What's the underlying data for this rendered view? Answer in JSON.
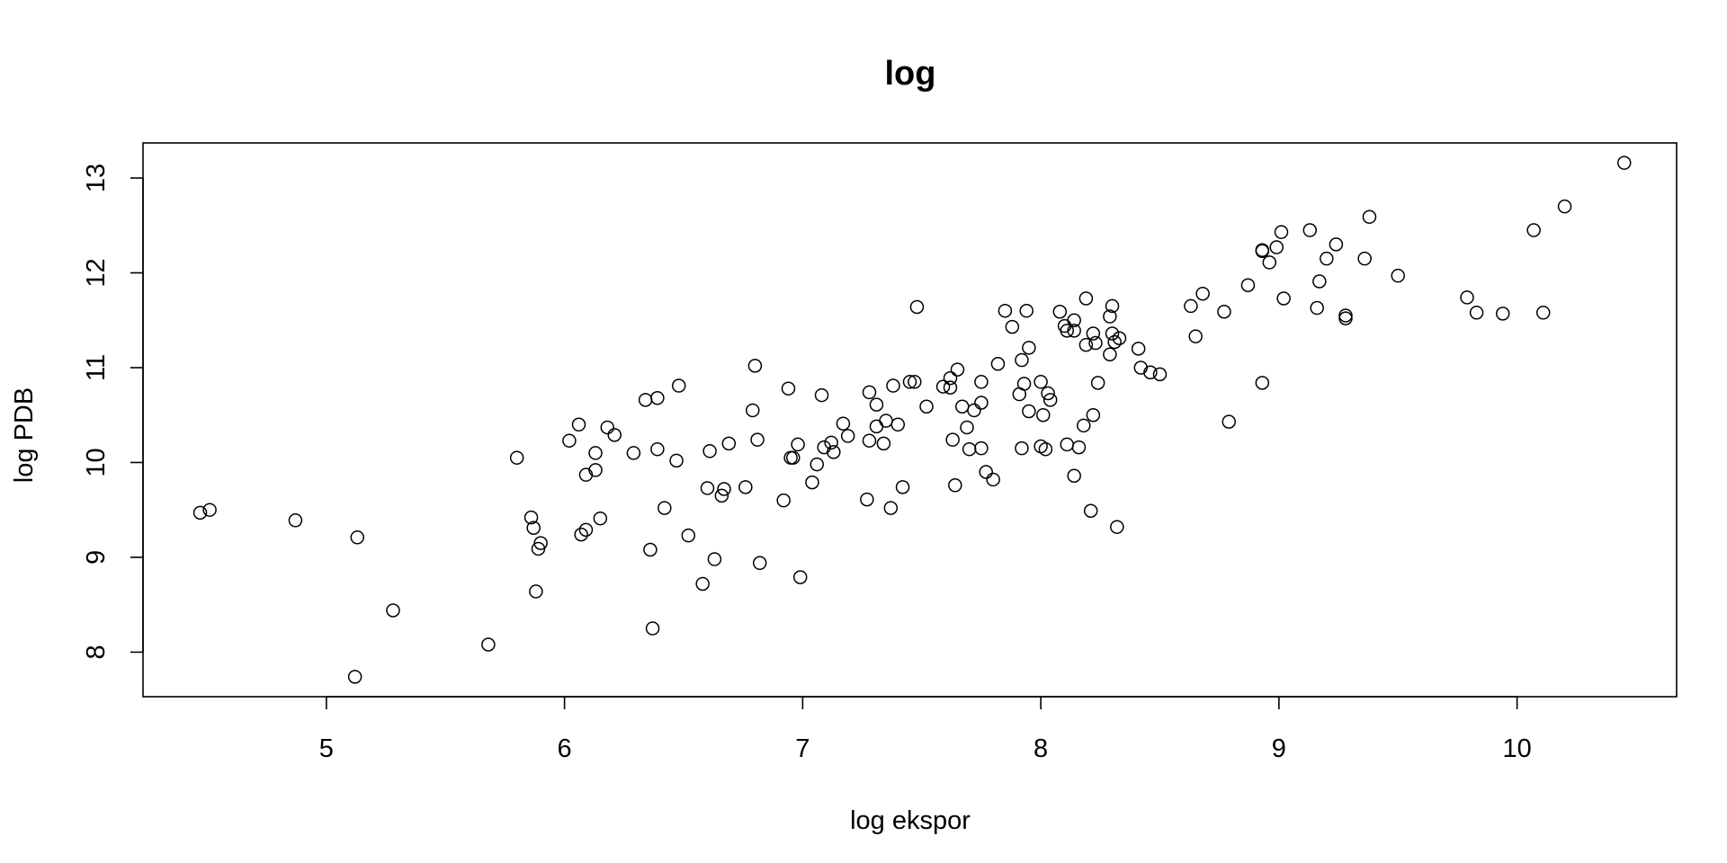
{
  "chart_data": {
    "type": "scatter",
    "title": "log",
    "xlabel": "log ekspor",
    "ylabel": "log PDB",
    "xlim": [
      4.23,
      10.67
    ],
    "ylim": [
      7.53,
      13.37
    ],
    "xticks": [
      5,
      6,
      7,
      8,
      9,
      10
    ],
    "yticks": [
      8,
      9,
      10,
      11,
      12,
      13
    ],
    "grid": false,
    "points": [
      [
        4.47,
        9.47
      ],
      [
        4.51,
        9.5
      ],
      [
        4.87,
        9.39
      ],
      [
        5.13,
        9.21
      ],
      [
        5.12,
        7.74
      ],
      [
        5.28,
        8.44
      ],
      [
        5.68,
        8.08
      ],
      [
        5.8,
        10.05
      ],
      [
        5.86,
        9.42
      ],
      [
        5.87,
        9.31
      ],
      [
        5.89,
        9.09
      ],
      [
        5.9,
        9.15
      ],
      [
        5.88,
        8.64
      ],
      [
        6.02,
        10.23
      ],
      [
        6.06,
        10.4
      ],
      [
        6.09,
        9.87
      ],
      [
        6.07,
        9.24
      ],
      [
        6.09,
        9.29
      ],
      [
        6.13,
        10.1
      ],
      [
        6.13,
        9.92
      ],
      [
        6.15,
        9.41
      ],
      [
        6.18,
        10.37
      ],
      [
        6.21,
        10.29
      ],
      [
        6.29,
        10.1
      ],
      [
        6.34,
        10.66
      ],
      [
        6.39,
        10.68
      ],
      [
        6.36,
        9.08
      ],
      [
        6.37,
        8.25
      ],
      [
        6.39,
        10.14
      ],
      [
        6.42,
        9.52
      ],
      [
        6.47,
        10.02
      ],
      [
        6.48,
        10.81
      ],
      [
        6.52,
        9.23
      ],
      [
        6.58,
        8.72
      ],
      [
        6.6,
        9.73
      ],
      [
        6.61,
        10.12
      ],
      [
        6.63,
        8.98
      ],
      [
        6.66,
        9.65
      ],
      [
        6.67,
        9.72
      ],
      [
        6.69,
        10.2
      ],
      [
        6.76,
        9.74
      ],
      [
        6.79,
        10.55
      ],
      [
        6.8,
        11.02
      ],
      [
        6.81,
        10.24
      ],
      [
        6.82,
        8.94
      ],
      [
        6.92,
        9.6
      ],
      [
        6.94,
        10.78
      ],
      [
        6.95,
        10.05
      ],
      [
        6.96,
        10.05
      ],
      [
        6.98,
        10.19
      ],
      [
        6.99,
        8.79
      ],
      [
        7.04,
        9.79
      ],
      [
        7.06,
        9.98
      ],
      [
        7.08,
        10.71
      ],
      [
        7.09,
        10.16
      ],
      [
        7.12,
        10.21
      ],
      [
        7.13,
        10.11
      ],
      [
        7.17,
        10.41
      ],
      [
        7.19,
        10.28
      ],
      [
        7.27,
        9.61
      ],
      [
        7.28,
        10.74
      ],
      [
        7.28,
        10.23
      ],
      [
        7.31,
        10.61
      ],
      [
        7.31,
        10.38
      ],
      [
        7.34,
        10.2
      ],
      [
        7.35,
        10.44
      ],
      [
        7.37,
        9.52
      ],
      [
        7.38,
        10.81
      ],
      [
        7.4,
        10.4
      ],
      [
        7.42,
        9.74
      ],
      [
        7.45,
        10.85
      ],
      [
        7.47,
        10.85
      ],
      [
        7.48,
        11.64
      ],
      [
        7.52,
        10.59
      ],
      [
        7.59,
        10.8
      ],
      [
        7.62,
        10.89
      ],
      [
        7.62,
        10.79
      ],
      [
        7.63,
        10.24
      ],
      [
        7.64,
        9.76
      ],
      [
        7.65,
        10.98
      ],
      [
        7.67,
        10.59
      ],
      [
        7.69,
        10.37
      ],
      [
        7.7,
        10.14
      ],
      [
        7.72,
        10.55
      ],
      [
        7.75,
        10.85
      ],
      [
        7.75,
        10.63
      ],
      [
        7.75,
        10.15
      ],
      [
        7.77,
        9.9
      ],
      [
        7.8,
        9.82
      ],
      [
        7.82,
        11.04
      ],
      [
        7.85,
        11.6
      ],
      [
        7.88,
        11.43
      ],
      [
        7.91,
        10.72
      ],
      [
        7.92,
        10.15
      ],
      [
        7.92,
        11.08
      ],
      [
        7.93,
        10.83
      ],
      [
        7.94,
        11.6
      ],
      [
        7.95,
        11.21
      ],
      [
        7.95,
        10.54
      ],
      [
        8.0,
        10.17
      ],
      [
        8.0,
        10.85
      ],
      [
        8.01,
        10.5
      ],
      [
        8.02,
        10.14
      ],
      [
        8.03,
        10.73
      ],
      [
        8.04,
        10.66
      ],
      [
        8.08,
        11.59
      ],
      [
        8.1,
        11.44
      ],
      [
        8.11,
        11.39
      ],
      [
        8.11,
        10.19
      ],
      [
        8.14,
        11.5
      ],
      [
        8.14,
        11.39
      ],
      [
        8.14,
        9.86
      ],
      [
        8.16,
        10.16
      ],
      [
        8.18,
        10.39
      ],
      [
        8.19,
        11.73
      ],
      [
        8.19,
        11.24
      ],
      [
        8.21,
        9.49
      ],
      [
        8.22,
        10.5
      ],
      [
        8.22,
        11.36
      ],
      [
        8.23,
        11.26
      ],
      [
        8.24,
        10.84
      ],
      [
        8.29,
        11.54
      ],
      [
        8.29,
        11.14
      ],
      [
        8.3,
        11.36
      ],
      [
        8.3,
        11.65
      ],
      [
        8.31,
        11.27
      ],
      [
        8.32,
        9.32
      ],
      [
        8.33,
        11.31
      ],
      [
        8.41,
        11.2
      ],
      [
        8.42,
        11.0
      ],
      [
        8.46,
        10.95
      ],
      [
        8.5,
        10.93
      ],
      [
        8.63,
        11.65
      ],
      [
        8.65,
        11.33
      ],
      [
        8.68,
        11.78
      ],
      [
        8.77,
        11.59
      ],
      [
        8.79,
        10.43
      ],
      [
        8.87,
        11.87
      ],
      [
        8.93,
        12.23
      ],
      [
        8.93,
        12.24
      ],
      [
        8.93,
        10.84
      ],
      [
        8.96,
        12.11
      ],
      [
        8.99,
        12.27
      ],
      [
        9.01,
        12.43
      ],
      [
        9.02,
        11.73
      ],
      [
        9.13,
        12.45
      ],
      [
        9.16,
        11.63
      ],
      [
        9.17,
        11.91
      ],
      [
        9.2,
        12.15
      ],
      [
        9.24,
        12.3
      ],
      [
        9.28,
        11.55
      ],
      [
        9.28,
        11.52
      ],
      [
        9.36,
        12.15
      ],
      [
        9.38,
        12.59
      ],
      [
        9.5,
        11.97
      ],
      [
        9.79,
        11.74
      ],
      [
        9.83,
        11.58
      ],
      [
        9.94,
        11.57
      ],
      [
        10.07,
        12.45
      ],
      [
        10.11,
        11.58
      ],
      [
        10.2,
        12.7
      ],
      [
        10.45,
        13.16
      ]
    ]
  }
}
